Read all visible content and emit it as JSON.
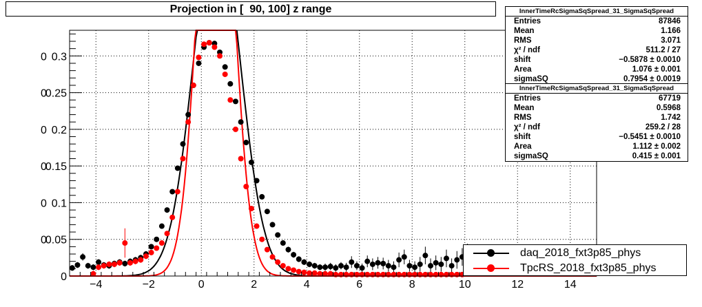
{
  "title": "Projection in [  90, 100] z range",
  "stats": [
    {
      "name": "InnerTimeRcSigmaSqSpread_31_SigmaSqSpread",
      "rows": [
        {
          "label": "Entries",
          "value": "87846"
        },
        {
          "label": "Mean",
          "value": "1.166"
        },
        {
          "label": "RMS",
          "value": "3.071"
        },
        {
          "label": "χ² / ndf",
          "value": "511.2 / 27"
        },
        {
          "label": "shift",
          "value": "−0.5878 ± 0.0010"
        },
        {
          "label": "Area",
          "value": "1.076 ± 0.001"
        },
        {
          "label": "sigmaSQ",
          "value": "0.7954 ± 0.0019"
        }
      ]
    },
    {
      "name": "InnerTimeRcSigmaSqSpread_31_SigmaSqSpread",
      "rows": [
        {
          "label": "Entries",
          "value": "67719"
        },
        {
          "label": "Mean",
          "value": "0.5968"
        },
        {
          "label": "RMS",
          "value": "1.742"
        },
        {
          "label": "χ² / ndf",
          "value": "259.2 / 28"
        },
        {
          "label": "shift",
          "value": "−0.5451 ± 0.0010"
        },
        {
          "label": "Area",
          "value": "1.112 ± 0.002"
        },
        {
          "label": "sigmaSQ",
          "value": "0.415 ± 0.001"
        }
      ]
    }
  ],
  "legend": [
    {
      "label": "daq_2018_fxt3p85_phys",
      "color": "#000000"
    },
    {
      "label": "TpcRS_2018_fxt3p85_phys",
      "color": "#ff0000"
    }
  ],
  "chart_data": {
    "type": "scatter",
    "xlim": [
      -5,
      15
    ],
    "ylim": [
      0,
      0.335
    ],
    "grid": true,
    "xticks": [
      -4,
      -2,
      0,
      2,
      4,
      6,
      8,
      10,
      12,
      14
    ],
    "xtick_labels": [
      "−4",
      "−2",
      "0",
      "2",
      "4",
      "6",
      "8",
      "10",
      "12",
      "14"
    ],
    "yticks": [
      0,
      0.05,
      0.1,
      0.15,
      0.2,
      0.25,
      0.3
    ],
    "ytick_labels": [
      "0",
      "0.05",
      "0.1",
      "0.15",
      "0.2",
      "0.25",
      "0.3"
    ],
    "ytick_overlay_labels": [
      "",
      "0",
      "0",
      "0",
      "0",
      "0",
      "0"
    ],
    "series": [
      {
        "name": "daq_2018_fxt3p85_phys",
        "color": "#000000",
        "x": [
          -4.9,
          -4.7,
          -4.5,
          -4.3,
          -4.1,
          -3.9,
          -3.7,
          -3.5,
          -3.3,
          -3.1,
          -2.9,
          -2.7,
          -2.5,
          -2.3,
          -2.1,
          -1.9,
          -1.7,
          -1.5,
          -1.3,
          -1.1,
          -0.9,
          -0.7,
          -0.5,
          -0.3,
          -0.1,
          0.1,
          0.3,
          0.5,
          0.7,
          0.9,
          1.1,
          1.3,
          1.5,
          1.7,
          1.9,
          2.1,
          2.3,
          2.5,
          2.7,
          2.9,
          3.1,
          3.3,
          3.5,
          3.7,
          3.9,
          4.1,
          4.3,
          4.5,
          4.7,
          4.9,
          5.1,
          5.3,
          5.5,
          5.7,
          5.9,
          6.1,
          6.3,
          6.5,
          6.7,
          6.9,
          7.1,
          7.3,
          7.5,
          7.7,
          7.9,
          8.1,
          8.3,
          8.5,
          8.7,
          8.9,
          9.1,
          9.3,
          9.5,
          9.7,
          9.9,
          10.1
        ],
        "y": [
          0.011,
          0.015,
          0.026,
          0.014,
          0.012,
          0.019,
          0.015,
          0.014,
          0.017,
          0.019,
          0.017,
          0.02,
          0.022,
          0.025,
          0.03,
          0.04,
          0.05,
          0.068,
          0.09,
          0.115,
          0.147,
          0.18,
          0.22,
          0.26,
          0.29,
          0.312,
          0.318,
          0.317,
          0.305,
          0.285,
          0.262,
          0.238,
          0.21,
          0.182,
          0.155,
          0.13,
          0.108,
          0.088,
          0.07,
          0.056,
          0.045,
          0.036,
          0.029,
          0.023,
          0.019,
          0.016,
          0.014,
          0.012,
          0.012,
          0.013,
          0.011,
          0.014,
          0.012,
          0.019,
          0.014,
          0.011,
          0.02,
          0.016,
          0.018,
          0.017,
          0.014,
          0.012,
          0.022,
          0.026,
          0.014,
          0.012,
          0.016,
          0.028,
          0.014,
          0.018,
          0.016,
          0.024,
          0.014,
          0.022,
          0.026,
          0.03
        ],
        "yerr": [
          0.004,
          0.004,
          0.005,
          0.004,
          0.004,
          0.004,
          0.004,
          0.004,
          0.004,
          0.004,
          0.004,
          0.004,
          0.004,
          0.004,
          0.004,
          0.003,
          0.003,
          0.003,
          0.003,
          0.003,
          0.003,
          0.003,
          0.003,
          0.003,
          0.003,
          0.003,
          0.003,
          0.003,
          0.003,
          0.003,
          0.003,
          0.003,
          0.003,
          0.003,
          0.003,
          0.003,
          0.003,
          0.003,
          0.003,
          0.003,
          0.003,
          0.004,
          0.004,
          0.004,
          0.004,
          0.004,
          0.004,
          0.004,
          0.005,
          0.005,
          0.005,
          0.005,
          0.006,
          0.008,
          0.006,
          0.006,
          0.008,
          0.008,
          0.008,
          0.008,
          0.008,
          0.008,
          0.01,
          0.01,
          0.008,
          0.008,
          0.01,
          0.012,
          0.01,
          0.01,
          0.01,
          0.012,
          0.01,
          0.012,
          0.012,
          0.014
        ]
      },
      {
        "name": "TpcRS_2018_fxt3p85_phys",
        "color": "#ff0000",
        "x": [
          -4.1,
          -3.9,
          -3.7,
          -3.5,
          -3.3,
          -3.1,
          -2.9,
          -2.7,
          -2.5,
          -2.3,
          -2.1,
          -1.9,
          -1.7,
          -1.5,
          -1.3,
          -1.1,
          -0.9,
          -0.7,
          -0.5,
          -0.3,
          -0.1,
          0.1,
          0.3,
          0.5,
          0.7,
          0.9,
          1.1,
          1.3,
          1.5,
          1.7,
          1.9,
          2.1,
          2.3,
          2.5,
          2.7,
          2.9,
          3.1,
          3.3,
          3.5,
          3.7,
          3.9,
          4.1,
          4.3,
          4.5,
          4.7,
          4.9,
          5.1,
          5.3,
          5.5,
          5.7,
          5.9,
          6.1,
          6.3,
          6.5,
          6.7,
          6.9,
          7.1,
          7.3,
          7.5,
          7.7,
          7.9,
          8.1,
          8.3,
          8.5,
          8.7,
          8.9,
          9.1,
          9.3,
          9.5,
          9.7,
          9.9
        ],
        "y": [
          0.003,
          0.012,
          0.014,
          0.016,
          0.016,
          0.018,
          0.045,
          0.018,
          0.02,
          0.022,
          0.027,
          0.032,
          0.038,
          0.045,
          0.058,
          0.08,
          0.115,
          0.16,
          0.21,
          0.26,
          0.298,
          0.316,
          0.318,
          0.312,
          0.3,
          0.275,
          0.24,
          0.2,
          0.16,
          0.122,
          0.092,
          0.068,
          0.05,
          0.036,
          0.026,
          0.019,
          0.014,
          0.01,
          0.008,
          0.006,
          0.005,
          0.004,
          0.004,
          0.003,
          0.003,
          0.003,
          0.002,
          0.002,
          0.002,
          0.002,
          0.002,
          0.002,
          0.002,
          0.002,
          0.002,
          0.002,
          0.002,
          0.002,
          0.002,
          0.002,
          0.002,
          0.002,
          0.002,
          0.002,
          0.002,
          0.002,
          0.002,
          0.002,
          0.002,
          0.002,
          0.002
        ],
        "yerr": [
          0.004,
          0.004,
          0.004,
          0.004,
          0.004,
          0.004,
          0.02,
          0.004,
          0.004,
          0.004,
          0.004,
          0.003,
          0.003,
          0.003,
          0.003,
          0.003,
          0.003,
          0.003,
          0.003,
          0.003,
          0.003,
          0.003,
          0.003,
          0.003,
          0.003,
          0.003,
          0.003,
          0.003,
          0.003,
          0.003,
          0.003,
          0.003,
          0.003,
          0.003,
          0.003,
          0.003,
          0.003,
          0.003,
          0.003,
          0.003,
          0.003,
          0.003,
          0.003,
          0.003,
          0.003,
          0.003,
          0.003,
          0.003,
          0.003,
          0.003,
          0.003,
          0.003,
          0.003,
          0.003,
          0.003,
          0.003,
          0.003,
          0.003,
          0.003,
          0.003,
          0.003,
          0.003,
          0.003,
          0.003,
          0.003,
          0.003,
          0.003,
          0.003,
          0.003,
          0.003,
          0.003
        ]
      }
    ],
    "fits": [
      {
        "name": "daq_2018_fxt3p85_phys",
        "color": "#000000",
        "shift": -0.5878,
        "area": 1.076,
        "sigmaSQ": 0.7954
      },
      {
        "name": "TpcRS_2018_fxt3p85_phys",
        "color": "#ff0000",
        "shift": -0.5451,
        "area": 1.112,
        "sigmaSQ": 0.415
      }
    ]
  }
}
